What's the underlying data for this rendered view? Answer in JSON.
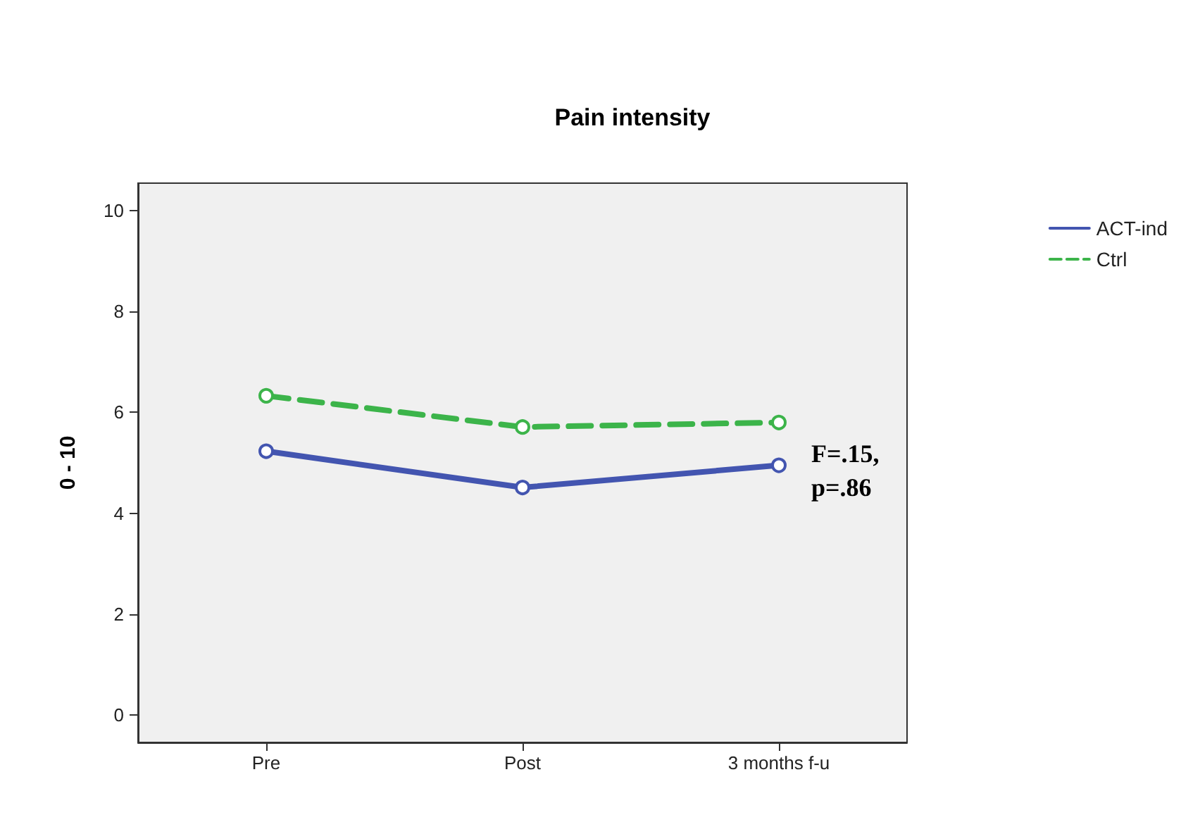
{
  "chart_data": {
    "type": "line",
    "title": "Pain intensity",
    "ylabel": "0 - 10",
    "categories": [
      "Pre",
      "Post",
      "3 months f-u"
    ],
    "series": [
      {
        "name": "ACT-ind",
        "color": "#4355b0",
        "values": [
          5.23,
          4.51,
          4.95
        ],
        "line_style": "solid"
      },
      {
        "name": "Ctrl",
        "color": "#3cb44a",
        "values": [
          6.33,
          5.71,
          5.8
        ],
        "line_style": "dashed"
      }
    ],
    "ylim": [
      -0.55,
      10.55
    ],
    "yticks": [
      0,
      2,
      4,
      6,
      8,
      10
    ],
    "grid": false,
    "legend": "top right",
    "marker": "circle",
    "annotations": [
      "F=.15,\np=.86"
    ]
  }
}
